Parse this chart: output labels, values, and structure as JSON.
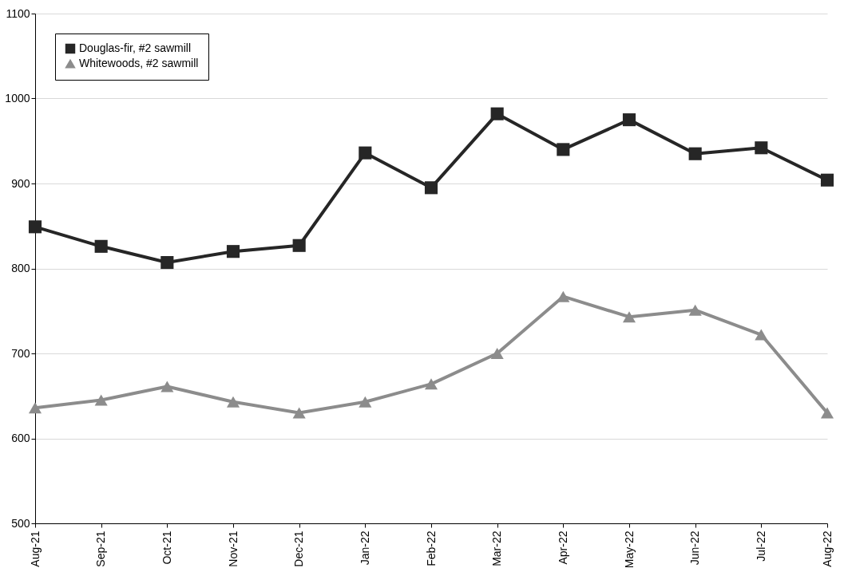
{
  "chart_data": {
    "type": "line",
    "categories": [
      "Aug-21",
      "Sep-21",
      "Oct-21",
      "Nov-21",
      "Dec-21",
      "Jan-22",
      "Feb-22",
      "Mar-22",
      "Apr-22",
      "May-22",
      "Jun-22",
      "Jul-22",
      "Aug-22"
    ],
    "series": [
      {
        "name": "Douglas-fir, #2 sawmill",
        "color": "#262626",
        "marker": "square",
        "values": [
          849,
          826,
          807,
          820,
          827,
          936,
          895,
          982,
          940,
          975,
          935,
          942,
          904
        ]
      },
      {
        "name": "Whitewoods, #2 sawmill",
        "color": "#8c8c8c",
        "marker": "triangle",
        "values": [
          636,
          645,
          661,
          643,
          630,
          643,
          664,
          700,
          767,
          743,
          751,
          722,
          630
        ]
      }
    ],
    "ylim": [
      500,
      1100
    ],
    "yticks": [
      500,
      600,
      700,
      800,
      900,
      1000,
      1100
    ],
    "grid": "y",
    "legend": "top left",
    "line_style": "solid"
  }
}
